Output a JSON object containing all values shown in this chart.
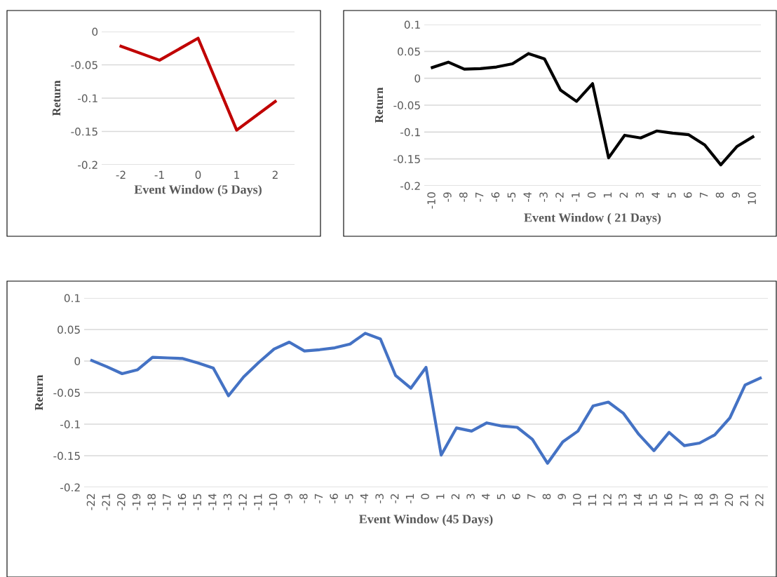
{
  "chart_data": [
    {
      "type": "line",
      "xlabel": "Event Window (5 Days)",
      "ylabel": "Return",
      "categories": [
        "-2",
        "-1",
        "0",
        "1",
        "2"
      ],
      "color": "#c00000",
      "values": [
        -0.022,
        -0.043,
        -0.01,
        -0.148,
        -0.105
      ],
      "ylim": [
        -0.2,
        0
      ],
      "yticks": [
        0,
        -0.05,
        -0.1,
        -0.15,
        -0.2
      ],
      "grid": "y"
    },
    {
      "type": "line",
      "xlabel": "Event Window ( 21 Days)",
      "ylabel": "Return",
      "categories": [
        "-10",
        "-9",
        "-8",
        "-7",
        "-6",
        "-5",
        "-4",
        "-3",
        "-2",
        "-1",
        "0",
        "1",
        "2",
        "3",
        "4",
        "5",
        "6",
        "7",
        "8",
        "9",
        "10"
      ],
      "color": "#000000",
      "values": [
        0.02,
        0.03,
        0.017,
        0.018,
        0.021,
        0.027,
        0.046,
        0.036,
        -0.022,
        -0.043,
        -0.01,
        -0.148,
        -0.106,
        -0.111,
        -0.098,
        -0.102,
        -0.105,
        -0.124,
        -0.161,
        -0.127,
        -0.109
      ],
      "ylim": [
        -0.2,
        0.1
      ],
      "yticks": [
        0.1,
        0.05,
        0,
        -0.05,
        -0.1,
        -0.15,
        -0.2
      ],
      "grid": "y"
    },
    {
      "type": "line",
      "xlabel": "Event Window (45 Days)",
      "ylabel": "Return",
      "categories": [
        "-22",
        "-21",
        "-20",
        "-19",
        "-18",
        "-17",
        "-16",
        "-15",
        "-14",
        "-13",
        "-12",
        "-11",
        "-10",
        "-9",
        "-8",
        "-7",
        "-6",
        "-5",
        "-4",
        "-3",
        "-2",
        "-1",
        "0",
        "1",
        "2",
        "3",
        "4",
        "5",
        "6",
        "7",
        "8",
        "9",
        "10",
        "11",
        "12",
        "13",
        "14",
        "15",
        "16",
        "17",
        "18",
        "19",
        "20",
        "21",
        "22"
      ],
      "color": "#4472c4",
      "values": [
        0.001,
        -0.009,
        -0.02,
        -0.014,
        0.006,
        0.005,
        0.004,
        -0.003,
        -0.011,
        -0.055,
        -0.025,
        -0.002,
        0.019,
        0.03,
        0.016,
        0.018,
        0.021,
        0.027,
        0.044,
        0.035,
        -0.023,
        -0.043,
        -0.01,
        -0.149,
        -0.106,
        -0.111,
        -0.098,
        -0.103,
        -0.105,
        -0.124,
        -0.162,
        -0.128,
        -0.111,
        -0.071,
        -0.065,
        -0.083,
        -0.116,
        -0.142,
        -0.113,
        -0.134,
        -0.13,
        -0.117,
        -0.09,
        -0.038,
        -0.027
      ],
      "ylim": [
        -0.2,
        0.1
      ],
      "yticks": [
        0.1,
        0.05,
        0,
        -0.05,
        -0.1,
        -0.15,
        -0.2
      ],
      "grid": "y"
    }
  ]
}
